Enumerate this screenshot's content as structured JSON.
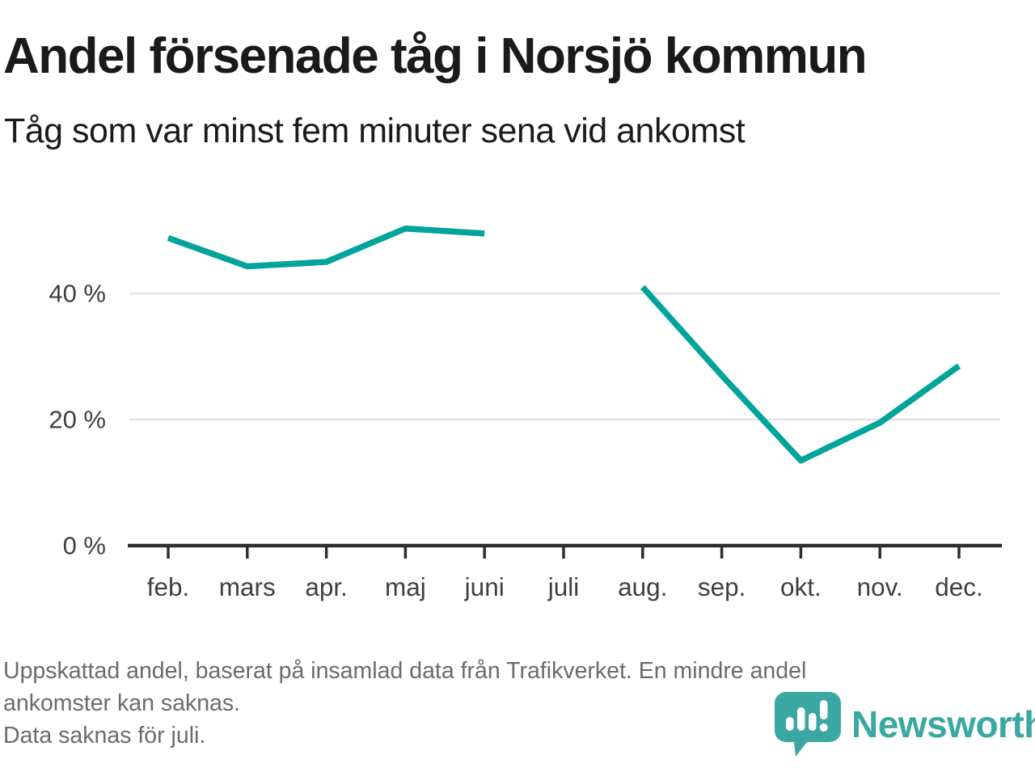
{
  "chart_data": {
    "type": "line",
    "title": "Andel försenade tåg i Norsjö kommun",
    "subtitle": "Tåg som var minst fem minuter sena vid ankomst",
    "categories": [
      "feb.",
      "mars",
      "apr.",
      "maj",
      "juni",
      "juli",
      "aug.",
      "sep.",
      "okt.",
      "nov.",
      "dec."
    ],
    "values": [
      48.8,
      44.3,
      45,
      50.3,
      49.5,
      null,
      41,
      27,
      13.5,
      19.5,
      28.5
    ],
    "unit": "%",
    "ylim": [
      0,
      55
    ],
    "yticks": [
      0,
      20,
      40
    ],
    "ytick_labels": [
      "0 %",
      "20 %",
      "40 %"
    ],
    "grid": "horizontal-only",
    "legend": "none",
    "line_color": "#00a49b",
    "missing_data": "juli"
  },
  "footer": {
    "lines": [
      "Uppskattad andel, baserat på insamlad data från Trafikverket. En mindre andel",
      "ankomster kan saknas.",
      "Data saknas för juli."
    ]
  },
  "logo": {
    "brand": "Newsworthy",
    "icon": "bar-chart-speech-pin-icon",
    "color": "#3ba7a2"
  },
  "colors": {
    "line": "#00a49b",
    "axis": "#2e2e2e",
    "grid": "#e3e3e3",
    "axis_label": "#3f3f3f",
    "title": "#1a1a1a",
    "footer_text": "#6b6b6b",
    "background": "#ffffff"
  }
}
